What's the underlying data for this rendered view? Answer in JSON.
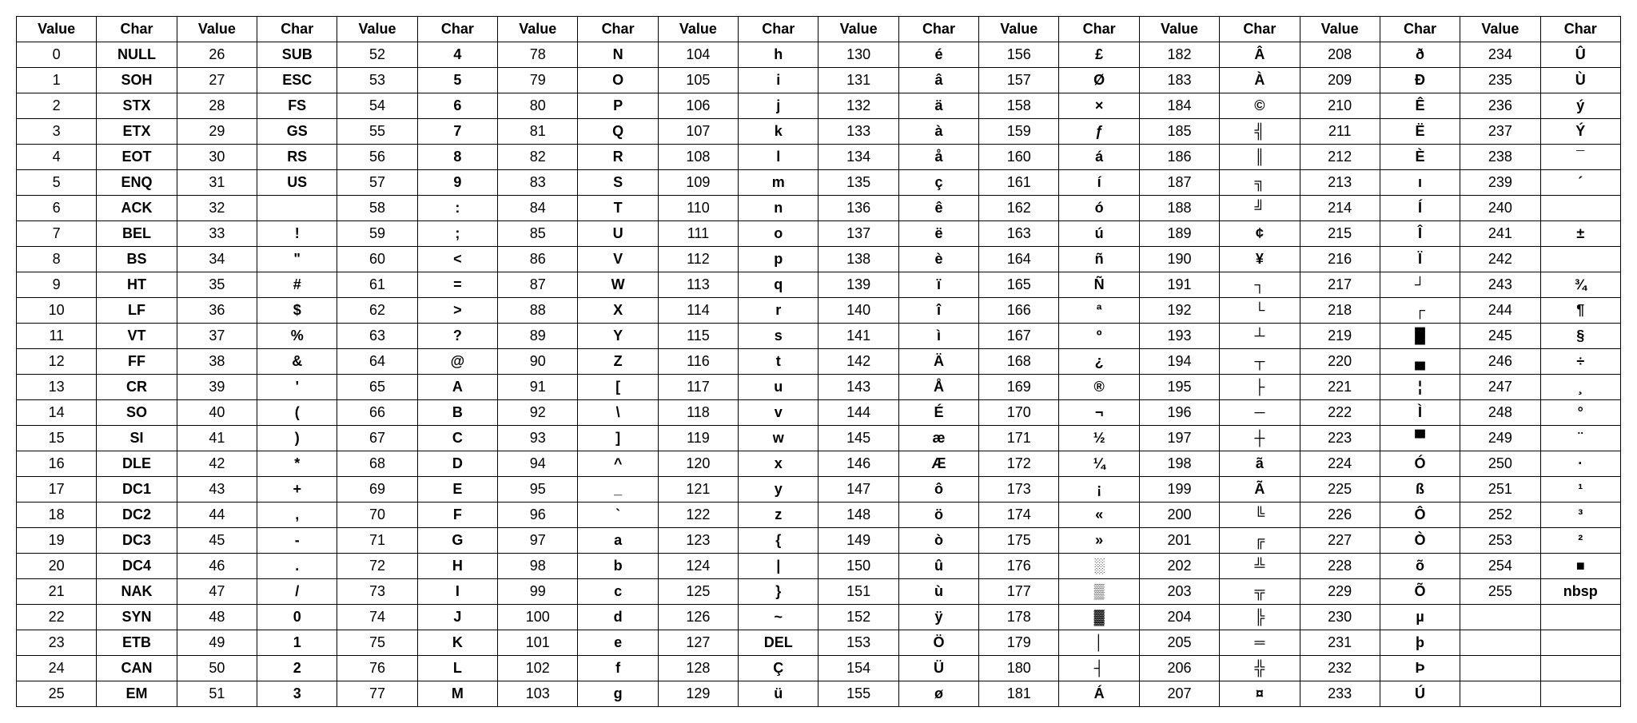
{
  "table": {
    "header_value": "Value",
    "header_char": "Char",
    "column_pairs": 10,
    "rows_per_column": 26,
    "border_color": "#000000",
    "background_color": "#ffffff",
    "font_family": "Arial",
    "header_fontsize": 18,
    "cell_fontsize": 18,
    "entries": [
      {
        "v": 0,
        "c": "NULL"
      },
      {
        "v": 1,
        "c": "SOH"
      },
      {
        "v": 2,
        "c": "STX"
      },
      {
        "v": 3,
        "c": "ETX"
      },
      {
        "v": 4,
        "c": "EOT"
      },
      {
        "v": 5,
        "c": "ENQ"
      },
      {
        "v": 6,
        "c": "ACK"
      },
      {
        "v": 7,
        "c": "BEL"
      },
      {
        "v": 8,
        "c": "BS"
      },
      {
        "v": 9,
        "c": "HT"
      },
      {
        "v": 10,
        "c": "LF"
      },
      {
        "v": 11,
        "c": "VT"
      },
      {
        "v": 12,
        "c": "FF"
      },
      {
        "v": 13,
        "c": "CR"
      },
      {
        "v": 14,
        "c": "SO"
      },
      {
        "v": 15,
        "c": "SI"
      },
      {
        "v": 16,
        "c": "DLE"
      },
      {
        "v": 17,
        "c": "DC1"
      },
      {
        "v": 18,
        "c": "DC2"
      },
      {
        "v": 19,
        "c": "DC3"
      },
      {
        "v": 20,
        "c": "DC4"
      },
      {
        "v": 21,
        "c": "NAK"
      },
      {
        "v": 22,
        "c": "SYN"
      },
      {
        "v": 23,
        "c": "ETB"
      },
      {
        "v": 24,
        "c": "CAN"
      },
      {
        "v": 25,
        "c": "EM"
      },
      {
        "v": 26,
        "c": "SUB"
      },
      {
        "v": 27,
        "c": "ESC"
      },
      {
        "v": 28,
        "c": "FS"
      },
      {
        "v": 29,
        "c": "GS"
      },
      {
        "v": 30,
        "c": "RS"
      },
      {
        "v": 31,
        "c": "US"
      },
      {
        "v": 32,
        "c": ""
      },
      {
        "v": 33,
        "c": "!"
      },
      {
        "v": 34,
        "c": "\""
      },
      {
        "v": 35,
        "c": "#"
      },
      {
        "v": 36,
        "c": "$"
      },
      {
        "v": 37,
        "c": "%"
      },
      {
        "v": 38,
        "c": "&"
      },
      {
        "v": 39,
        "c": "'"
      },
      {
        "v": 40,
        "c": "("
      },
      {
        "v": 41,
        "c": ")"
      },
      {
        "v": 42,
        "c": "*"
      },
      {
        "v": 43,
        "c": "+"
      },
      {
        "v": 44,
        "c": ","
      },
      {
        "v": 45,
        "c": "-"
      },
      {
        "v": 46,
        "c": "."
      },
      {
        "v": 47,
        "c": "/"
      },
      {
        "v": 48,
        "c": "0"
      },
      {
        "v": 49,
        "c": "1"
      },
      {
        "v": 50,
        "c": "2"
      },
      {
        "v": 51,
        "c": "3"
      },
      {
        "v": 52,
        "c": "4"
      },
      {
        "v": 53,
        "c": "5"
      },
      {
        "v": 54,
        "c": "6"
      },
      {
        "v": 55,
        "c": "7"
      },
      {
        "v": 56,
        "c": "8"
      },
      {
        "v": 57,
        "c": "9"
      },
      {
        "v": 58,
        "c": ":"
      },
      {
        "v": 59,
        "c": ";"
      },
      {
        "v": 60,
        "c": "<"
      },
      {
        "v": 61,
        "c": "="
      },
      {
        "v": 62,
        "c": ">"
      },
      {
        "v": 63,
        "c": "?"
      },
      {
        "v": 64,
        "c": "@"
      },
      {
        "v": 65,
        "c": "A"
      },
      {
        "v": 66,
        "c": "B"
      },
      {
        "v": 67,
        "c": "C"
      },
      {
        "v": 68,
        "c": "D"
      },
      {
        "v": 69,
        "c": "E"
      },
      {
        "v": 70,
        "c": "F"
      },
      {
        "v": 71,
        "c": "G"
      },
      {
        "v": 72,
        "c": "H"
      },
      {
        "v": 73,
        "c": "I"
      },
      {
        "v": 74,
        "c": "J"
      },
      {
        "v": 75,
        "c": "K"
      },
      {
        "v": 76,
        "c": "L"
      },
      {
        "v": 77,
        "c": "M"
      },
      {
        "v": 78,
        "c": "N"
      },
      {
        "v": 79,
        "c": "O"
      },
      {
        "v": 80,
        "c": "P"
      },
      {
        "v": 81,
        "c": "Q"
      },
      {
        "v": 82,
        "c": "R"
      },
      {
        "v": 83,
        "c": "S"
      },
      {
        "v": 84,
        "c": "T"
      },
      {
        "v": 85,
        "c": "U"
      },
      {
        "v": 86,
        "c": "V"
      },
      {
        "v": 87,
        "c": "W"
      },
      {
        "v": 88,
        "c": "X"
      },
      {
        "v": 89,
        "c": "Y"
      },
      {
        "v": 90,
        "c": "Z"
      },
      {
        "v": 91,
        "c": "["
      },
      {
        "v": 92,
        "c": "\\"
      },
      {
        "v": 93,
        "c": "]"
      },
      {
        "v": 94,
        "c": "^"
      },
      {
        "v": 95,
        "c": "_"
      },
      {
        "v": 96,
        "c": "`"
      },
      {
        "v": 97,
        "c": "a"
      },
      {
        "v": 98,
        "c": "b"
      },
      {
        "v": 99,
        "c": "c"
      },
      {
        "v": 100,
        "c": "d"
      },
      {
        "v": 101,
        "c": "e"
      },
      {
        "v": 102,
        "c": "f"
      },
      {
        "v": 103,
        "c": "g"
      },
      {
        "v": 104,
        "c": "h"
      },
      {
        "v": 105,
        "c": "i"
      },
      {
        "v": 106,
        "c": "j"
      },
      {
        "v": 107,
        "c": "k"
      },
      {
        "v": 108,
        "c": "l"
      },
      {
        "v": 109,
        "c": "m"
      },
      {
        "v": 110,
        "c": "n"
      },
      {
        "v": 111,
        "c": "o"
      },
      {
        "v": 112,
        "c": "p"
      },
      {
        "v": 113,
        "c": "q"
      },
      {
        "v": 114,
        "c": "r"
      },
      {
        "v": 115,
        "c": "s"
      },
      {
        "v": 116,
        "c": "t"
      },
      {
        "v": 117,
        "c": "u"
      },
      {
        "v": 118,
        "c": "v"
      },
      {
        "v": 119,
        "c": "w"
      },
      {
        "v": 120,
        "c": "x"
      },
      {
        "v": 121,
        "c": "y"
      },
      {
        "v": 122,
        "c": "z"
      },
      {
        "v": 123,
        "c": "{"
      },
      {
        "v": 124,
        "c": "|"
      },
      {
        "v": 125,
        "c": "}"
      },
      {
        "v": 126,
        "c": "~"
      },
      {
        "v": 127,
        "c": "DEL"
      },
      {
        "v": 128,
        "c": "Ç"
      },
      {
        "v": 129,
        "c": "ü"
      },
      {
        "v": 130,
        "c": "é"
      },
      {
        "v": 131,
        "c": "â"
      },
      {
        "v": 132,
        "c": "ä"
      },
      {
        "v": 133,
        "c": "à"
      },
      {
        "v": 134,
        "c": "å"
      },
      {
        "v": 135,
        "c": "ç"
      },
      {
        "v": 136,
        "c": "ê"
      },
      {
        "v": 137,
        "c": "ë"
      },
      {
        "v": 138,
        "c": "è"
      },
      {
        "v": 139,
        "c": "ï"
      },
      {
        "v": 140,
        "c": "î"
      },
      {
        "v": 141,
        "c": "ì"
      },
      {
        "v": 142,
        "c": "Ä"
      },
      {
        "v": 143,
        "c": "Å"
      },
      {
        "v": 144,
        "c": "É"
      },
      {
        "v": 145,
        "c": "æ"
      },
      {
        "v": 146,
        "c": "Æ"
      },
      {
        "v": 147,
        "c": "ô"
      },
      {
        "v": 148,
        "c": "ö"
      },
      {
        "v": 149,
        "c": "ò"
      },
      {
        "v": 150,
        "c": "û"
      },
      {
        "v": 151,
        "c": "ù"
      },
      {
        "v": 152,
        "c": "ÿ"
      },
      {
        "v": 153,
        "c": "Ö"
      },
      {
        "v": 154,
        "c": "Ü"
      },
      {
        "v": 155,
        "c": "ø"
      },
      {
        "v": 156,
        "c": "£"
      },
      {
        "v": 157,
        "c": "Ø"
      },
      {
        "v": 158,
        "c": "×"
      },
      {
        "v": 159,
        "c": "ƒ"
      },
      {
        "v": 160,
        "c": "á"
      },
      {
        "v": 161,
        "c": "í"
      },
      {
        "v": 162,
        "c": "ó"
      },
      {
        "v": 163,
        "c": "ú"
      },
      {
        "v": 164,
        "c": "ñ"
      },
      {
        "v": 165,
        "c": "Ñ"
      },
      {
        "v": 166,
        "c": "ª"
      },
      {
        "v": 167,
        "c": "º"
      },
      {
        "v": 168,
        "c": "¿"
      },
      {
        "v": 169,
        "c": "®"
      },
      {
        "v": 170,
        "c": "¬"
      },
      {
        "v": 171,
        "c": "½"
      },
      {
        "v": 172,
        "c": "¼"
      },
      {
        "v": 173,
        "c": "¡"
      },
      {
        "v": 174,
        "c": "«"
      },
      {
        "v": 175,
        "c": "»"
      },
      {
        "v": 176,
        "c": "░"
      },
      {
        "v": 177,
        "c": "▒"
      },
      {
        "v": 178,
        "c": "▓"
      },
      {
        "v": 179,
        "c": "│"
      },
      {
        "v": 180,
        "c": "┤"
      },
      {
        "v": 181,
        "c": "Á"
      },
      {
        "v": 182,
        "c": "Â"
      },
      {
        "v": 183,
        "c": "À"
      },
      {
        "v": 184,
        "c": "©"
      },
      {
        "v": 185,
        "c": "╣"
      },
      {
        "v": 186,
        "c": "║"
      },
      {
        "v": 187,
        "c": "╗"
      },
      {
        "v": 188,
        "c": "╝"
      },
      {
        "v": 189,
        "c": "¢"
      },
      {
        "v": 190,
        "c": "¥"
      },
      {
        "v": 191,
        "c": "┐"
      },
      {
        "v": 192,
        "c": "└"
      },
      {
        "v": 193,
        "c": "┴"
      },
      {
        "v": 194,
        "c": "┬"
      },
      {
        "v": 195,
        "c": "├"
      },
      {
        "v": 196,
        "c": "─"
      },
      {
        "v": 197,
        "c": "┼"
      },
      {
        "v": 198,
        "c": "ã"
      },
      {
        "v": 199,
        "c": "Ã"
      },
      {
        "v": 200,
        "c": "╚"
      },
      {
        "v": 201,
        "c": "╔"
      },
      {
        "v": 202,
        "c": "╩"
      },
      {
        "v": 203,
        "c": "╦"
      },
      {
        "v": 204,
        "c": "╠"
      },
      {
        "v": 205,
        "c": "═"
      },
      {
        "v": 206,
        "c": "╬"
      },
      {
        "v": 207,
        "c": "¤"
      },
      {
        "v": 208,
        "c": "ð"
      },
      {
        "v": 209,
        "c": "Ð"
      },
      {
        "v": 210,
        "c": "Ê"
      },
      {
        "v": 211,
        "c": "Ë"
      },
      {
        "v": 212,
        "c": "È"
      },
      {
        "v": 213,
        "c": "ı"
      },
      {
        "v": 214,
        "c": "Í"
      },
      {
        "v": 215,
        "c": "Î"
      },
      {
        "v": 216,
        "c": "Ï"
      },
      {
        "v": 217,
        "c": "┘"
      },
      {
        "v": 218,
        "c": "┌"
      },
      {
        "v": 219,
        "c": "█"
      },
      {
        "v": 220,
        "c": "▄"
      },
      {
        "v": 221,
        "c": "¦"
      },
      {
        "v": 222,
        "c": "Ì"
      },
      {
        "v": 223,
        "c": "▀"
      },
      {
        "v": 224,
        "c": "Ó"
      },
      {
        "v": 225,
        "c": "ß"
      },
      {
        "v": 226,
        "c": "Ô"
      },
      {
        "v": 227,
        "c": "Ò"
      },
      {
        "v": 228,
        "c": "õ"
      },
      {
        "v": 229,
        "c": "Õ"
      },
      {
        "v": 230,
        "c": "µ"
      },
      {
        "v": 231,
        "c": "þ"
      },
      {
        "v": 232,
        "c": "Þ"
      },
      {
        "v": 233,
        "c": "Ú"
      },
      {
        "v": 234,
        "c": "Û"
      },
      {
        "v": 235,
        "c": "Ù"
      },
      {
        "v": 236,
        "c": "ý"
      },
      {
        "v": 237,
        "c": "Ý"
      },
      {
        "v": 238,
        "c": "¯"
      },
      {
        "v": 239,
        "c": "´"
      },
      {
        "v": 240,
        "c": ""
      },
      {
        "v": 241,
        "c": "±"
      },
      {
        "v": 242,
        "c": ""
      },
      {
        "v": 243,
        "c": "¾"
      },
      {
        "v": 244,
        "c": "¶"
      },
      {
        "v": 245,
        "c": "§"
      },
      {
        "v": 246,
        "c": "÷"
      },
      {
        "v": 247,
        "c": "¸"
      },
      {
        "v": 248,
        "c": "°"
      },
      {
        "v": 249,
        "c": "¨"
      },
      {
        "v": 250,
        "c": "·"
      },
      {
        "v": 251,
        "c": "¹"
      },
      {
        "v": 252,
        "c": "³"
      },
      {
        "v": 253,
        "c": "²"
      },
      {
        "v": 254,
        "c": "■"
      },
      {
        "v": 255,
        "c": "nbsp"
      }
    ]
  }
}
